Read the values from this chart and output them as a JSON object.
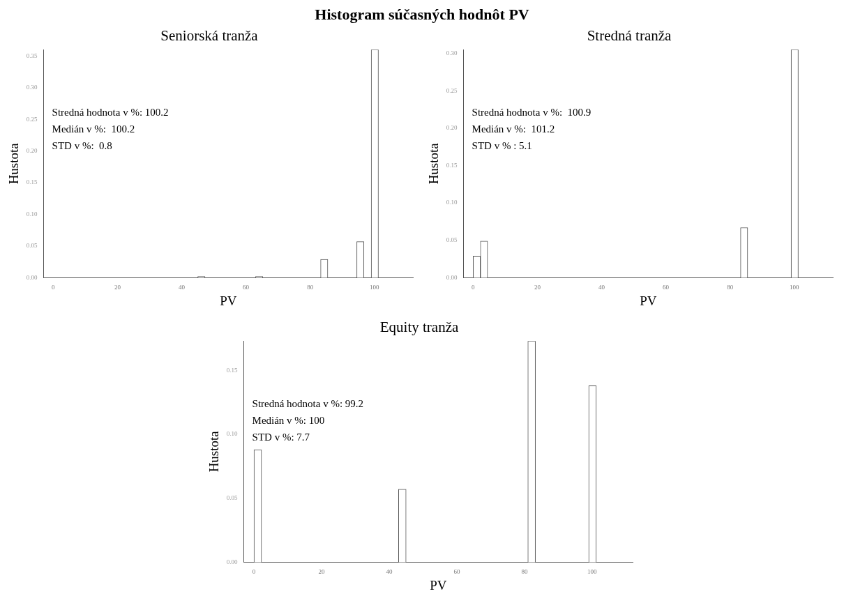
{
  "chart_data": [
    {
      "type": "histogram",
      "title": "Histogram súčasných hodnôt PV",
      "subtitle": "Seniorská tranža",
      "xlabel": "PV",
      "ylabel": "Hustota",
      "color": "#ffffff",
      "bins": [
        0,
        2.25,
        4.5,
        6.75,
        9,
        11.25,
        13.5,
        15.75,
        18,
        20.25,
        22.5,
        24.75,
        27,
        29.25,
        31.5,
        33.75,
        36,
        38.25,
        40.5,
        42.75,
        45,
        47.25,
        49.5,
        51.75,
        54,
        56.25,
        58.5,
        60.75,
        63,
        65.25,
        67.5,
        69.75,
        72,
        74.25,
        76.5,
        78.75,
        81,
        83.25,
        85.5,
        87.75,
        90,
        92.25,
        94.5,
        96.75,
        99,
        101.25,
        103.5
      ],
      "values": [
        0,
        0,
        0,
        0,
        0,
        0,
        0,
        0,
        0,
        0,
        0,
        0,
        0,
        0,
        0,
        0,
        0,
        0,
        0,
        0,
        0.002,
        0,
        0,
        0,
        0,
        0,
        0,
        0,
        0.002,
        0,
        0,
        0,
        0,
        0,
        0,
        0,
        0,
        0.029,
        0,
        0,
        0,
        0,
        0.057,
        0,
        0.36,
        0
      ],
      "xlim": [
        -3,
        112
      ],
      "xticks": [
        0,
        20,
        40,
        60,
        80,
        100
      ],
      "ylim": [
        0,
        0.36
      ],
      "yticks": [
        {
          "value": 0,
          "label": "0.00"
        },
        {
          "value": 0.05,
          "label": "0.05"
        },
        {
          "value": 0.1,
          "label": "0.10"
        },
        {
          "value": 0.15,
          "label": "0.15"
        },
        {
          "value": 0.2,
          "label": "0.20"
        },
        {
          "value": 0.25,
          "label": "0.25"
        },
        {
          "value": 0.3,
          "label": "0.30"
        },
        {
          "value": 0.35,
          "label": "0.35"
        }
      ],
      "annotations": [
        "Stredná hodnota v %: 100.2",
        "Medián v %:  100.2",
        "STD v %:  0.8"
      ],
      "grid": false,
      "legend": false
    },
    {
      "type": "histogram",
      "subtitle": "Stredná tranža",
      "xlabel": "PV",
      "ylabel": "Hustota",
      "color": "#ffffff",
      "bins": [
        0,
        2.25,
        4.5,
        6.75,
        9,
        11.25,
        13.5,
        15.75,
        18,
        20.25,
        22.5,
        24.75,
        27,
        29.25,
        31.5,
        33.75,
        36,
        38.25,
        40.5,
        42.75,
        45,
        47.25,
        49.5,
        51.75,
        54,
        56.25,
        58.5,
        60.75,
        63,
        65.25,
        67.5,
        69.75,
        72,
        74.25,
        76.5,
        78.75,
        81,
        83.25,
        85.5,
        87.75,
        90,
        92.25,
        94.5,
        96.75,
        99,
        101.25,
        103.5
      ],
      "values": [
        0.029,
        0.049,
        0,
        0,
        0,
        0,
        0,
        0,
        0,
        0,
        0,
        0,
        0,
        0,
        0,
        0,
        0,
        0,
        0,
        0,
        0,
        0,
        0,
        0,
        0,
        0,
        0,
        0,
        0,
        0,
        0,
        0,
        0,
        0,
        0,
        0,
        0,
        0.067,
        0,
        0,
        0,
        0,
        0,
        0,
        0.305,
        0
      ],
      "xlim": [
        -3,
        112
      ],
      "xticks": [
        0,
        20,
        40,
        60,
        80,
        100
      ],
      "ylim": [
        0,
        0.305
      ],
      "yticks": [
        {
          "value": 0,
          "label": "0.00"
        },
        {
          "value": 0.05,
          "label": "0.05"
        },
        {
          "value": 0.1,
          "label": "0.10"
        },
        {
          "value": 0.15,
          "label": "0.15"
        },
        {
          "value": 0.2,
          "label": "0.20"
        },
        {
          "value": 0.25,
          "label": "0.25"
        },
        {
          "value": 0.3,
          "label": "0.30"
        }
      ],
      "annotations": [
        "Stredná hodnota v %:  100.9",
        "Medián v %:  101.2",
        "STD v % : 5.1"
      ],
      "grid": false,
      "legend": false
    },
    {
      "type": "histogram",
      "subtitle": "Equity tranža",
      "xlabel": "PV",
      "ylabel": "Hustota",
      "color": "#ffffff",
      "bins": [
        0,
        2.25,
        4.5,
        6.75,
        9,
        11.25,
        13.5,
        15.75,
        18,
        20.25,
        22.5,
        24.75,
        27,
        29.25,
        31.5,
        33.75,
        36,
        38.25,
        40.5,
        42.75,
        45,
        47.25,
        49.5,
        51.75,
        54,
        56.25,
        58.5,
        60.75,
        63,
        65.25,
        67.5,
        69.75,
        72,
        74.25,
        76.5,
        78.75,
        81,
        83.25,
        85.5,
        87.75,
        90,
        92.25,
        94.5,
        96.75,
        99,
        101.25,
        103.5
      ],
      "values": [
        0.088,
        0,
        0,
        0,
        0,
        0,
        0,
        0,
        0,
        0,
        0,
        0,
        0,
        0,
        0,
        0,
        0,
        0,
        0,
        0.057,
        0,
        0,
        0,
        0,
        0,
        0,
        0,
        0,
        0,
        0,
        0,
        0,
        0,
        0,
        0,
        0,
        0.173,
        0,
        0,
        0,
        0,
        0,
        0,
        0,
        0.138,
        0
      ],
      "xlim": [
        -3,
        112
      ],
      "xticks": [
        0,
        20,
        40,
        60,
        80,
        100
      ],
      "ylim": [
        0,
        0.173
      ],
      "yticks": [
        {
          "value": 0,
          "label": "0.00"
        },
        {
          "value": 0.05,
          "label": "0.05"
        },
        {
          "value": 0.1,
          "label": "0.10"
        },
        {
          "value": 0.15,
          "label": "0.15"
        }
      ],
      "annotations": [
        "Stredná hodnota v %: 99.2",
        "Medián v %: 100",
        "STD v %: 7.7"
      ],
      "grid": false,
      "legend": false
    }
  ]
}
